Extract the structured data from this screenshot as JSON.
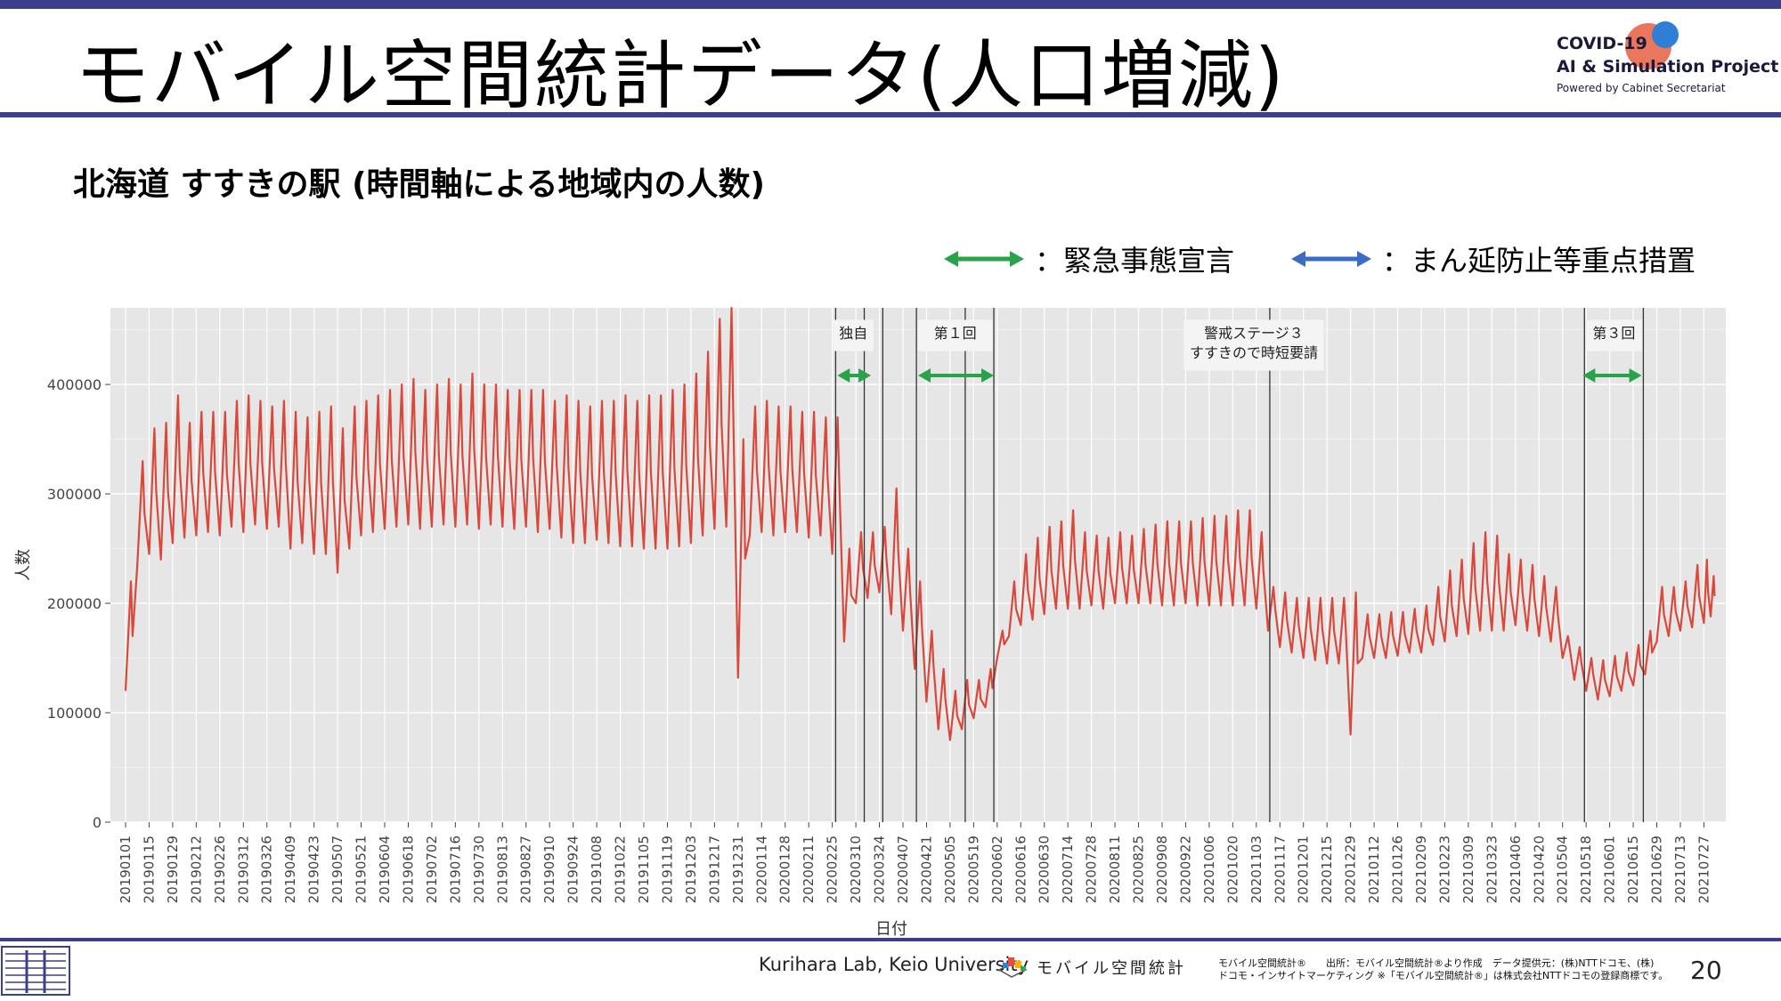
{
  "slide": {
    "title": "モバイル空間統計データ(人口増減)",
    "brand": {
      "line1": "COVID-19",
      "line2": "AI & Simulation Project",
      "line3": "Powered by Cabinet Secretariat"
    },
    "subtitle": "北海道 すすきの駅 (時間軸による地域内の人数)",
    "legend": [
      {
        "label": "：緊急事態宣言",
        "color": "#2aa24a"
      },
      {
        "label": "：まん延防止等重点措置",
        "color": "#3b6bc4"
      }
    ],
    "footer": {
      "lab": "Kurihara Lab, Keio University",
      "mobile_logo_text": "モバイル空間統計",
      "note_line1": "モバイル空間統計®　　出所：モバイル空間統計®より作成　データ提供元：(株)NTTドコモ、(株)",
      "note_line2": "ドコモ・インサイトマーケティング ※「モバイル空間統計®」は株式会社NTTドコモの登録商標です。",
      "page": "20"
    }
  },
  "chart_data": {
    "type": "line",
    "xlabel": "日付",
    "ylabel": "人数",
    "ylim": [
      0,
      470000
    ],
    "yticks": [
      0,
      100000,
      200000,
      300000,
      400000
    ],
    "ytick_labels": [
      "0",
      "100000",
      "200000",
      "300000",
      "400000"
    ],
    "xtick_labels": [
      "20190101",
      "20190115",
      "20190129",
      "20190212",
      "20190226",
      "20190312",
      "20190326",
      "20190409",
      "20190423",
      "20190507",
      "20190521",
      "20190604",
      "20190618",
      "20190702",
      "20190716",
      "20190730",
      "20190813",
      "20190827",
      "20190910",
      "20190924",
      "20191008",
      "20191022",
      "20191105",
      "20191119",
      "20191203",
      "20191217",
      "20191231",
      "20200114",
      "20200128",
      "20200211",
      "20200225",
      "20200310",
      "20200324",
      "20200407",
      "20200421",
      "20200505",
      "20200519",
      "20200602",
      "20200616",
      "20200630",
      "20200714",
      "20200728",
      "20200811",
      "20200825",
      "20200908",
      "20200922",
      "20201006",
      "20201020",
      "20201103",
      "20201117",
      "20201201",
      "20201215",
      "20201229",
      "20210112",
      "20210126",
      "20210209",
      "20210223",
      "20210309",
      "20210323",
      "20210406",
      "20210420",
      "20210504",
      "20210518",
      "20210601",
      "20210615",
      "20210629",
      "20210713",
      "20210727"
    ],
    "series_color": "#d9483b",
    "series": [
      {
        "x": [
          "20190101",
          "20190108",
          "20190115",
          "20190122",
          "20190129",
          "20190205",
          "20190212",
          "20190219",
          "20190226",
          "20190305",
          "20190312",
          "20190319",
          "20190326",
          "20190402",
          "20190409",
          "20190416",
          "20190423",
          "20190430",
          "20190507",
          "20190514",
          "20190521",
          "20190528",
          "20190604",
          "20190611",
          "20190618",
          "20190625",
          "20190702",
          "20190709",
          "20190716",
          "20190723",
          "20190730",
          "20190806",
          "20190813",
          "20190820",
          "20190827",
          "20190903",
          "20190910",
          "20190917",
          "20190924",
          "20191001",
          "20191008",
          "20191015",
          "20191022",
          "20191029",
          "20191105",
          "20191112",
          "20191119",
          "20191126",
          "20191203",
          "20191210",
          "20191217",
          "20191224",
          "20191231",
          "20200107",
          "20200114",
          "20200121",
          "20200128",
          "20200204",
          "20200211",
          "20200218",
          "20200225",
          "20200303",
          "20200310",
          "20200317",
          "20200324",
          "20200331",
          "20200407",
          "20200414",
          "20200421",
          "20200428",
          "20200505",
          "20200512",
          "20200519",
          "20200526",
          "20200602",
          "20200609",
          "20200616",
          "20200623",
          "20200630",
          "20200707",
          "20200714",
          "20200721",
          "20200728",
          "20200804",
          "20200811",
          "20200818",
          "20200825",
          "20200901",
          "20200908",
          "20200915",
          "20200922",
          "20200929",
          "20201006",
          "20201013",
          "20201020",
          "20201027",
          "20201103",
          "20201110",
          "20201117",
          "20201124",
          "20201201",
          "20201208",
          "20201215",
          "20201222",
          "20201229",
          "20210105",
          "20210112",
          "20210119",
          "20210126",
          "20210202",
          "20210209",
          "20210216",
          "20210223",
          "20210302",
          "20210309",
          "20210316",
          "20210323",
          "20210330",
          "20210406",
          "20210413",
          "20210420",
          "20210427",
          "20210504",
          "20210511",
          "20210518",
          "20210525",
          "20210601",
          "20210608",
          "20210615",
          "20210622",
          "20210629",
          "20210706",
          "20210713",
          "20210720",
          "20210727",
          "20210731"
        ],
        "low": [
          120000,
          235000,
          245000,
          240000,
          255000,
          260000,
          262000,
          265000,
          262000,
          270000,
          265000,
          272000,
          268000,
          270000,
          250000,
          255000,
          245000,
          245000,
          228000,
          250000,
          262000,
          265000,
          268000,
          270000,
          272000,
          268000,
          270000,
          272000,
          270000,
          272000,
          268000,
          272000,
          270000,
          268000,
          270000,
          265000,
          268000,
          260000,
          255000,
          255000,
          258000,
          255000,
          252000,
          252000,
          250000,
          250000,
          250000,
          252000,
          255000,
          262000,
          268000,
          270000,
          132000,
          262000,
          265000,
          262000,
          265000,
          265000,
          260000,
          262000,
          245000,
          165000,
          200000,
          205000,
          210000,
          190000,
          175000,
          140000,
          110000,
          85000,
          75000,
          85000,
          95000,
          105000,
          150000,
          170000,
          180000,
          185000,
          190000,
          195000,
          195000,
          195000,
          198000,
          195000,
          200000,
          200000,
          200000,
          200000,
          198000,
          198000,
          200000,
          198000,
          198000,
          198000,
          198000,
          198000,
          195000,
          175000,
          160000,
          155000,
          150000,
          148000,
          145000,
          145000,
          80000,
          150000,
          150000,
          150000,
          152000,
          155000,
          155000,
          162000,
          165000,
          170000,
          172000,
          175000,
          175000,
          175000,
          180000,
          175000,
          170000,
          165000,
          150000,
          130000,
          120000,
          112000,
          115000,
          120000,
          125000,
          135000,
          165000,
          170000,
          175000,
          178000,
          182000,
          188000
        ],
        "high": [
          220000,
          330000,
          360000,
          365000,
          390000,
          365000,
          375000,
          375000,
          375000,
          385000,
          390000,
          385000,
          380000,
          385000,
          375000,
          370000,
          375000,
          380000,
          360000,
          380000,
          385000,
          390000,
          395000,
          400000,
          405000,
          395000,
          400000,
          405000,
          400000,
          410000,
          400000,
          400000,
          395000,
          395000,
          395000,
          395000,
          385000,
          390000,
          385000,
          380000,
          385000,
          385000,
          390000,
          385000,
          390000,
          390000,
          395000,
          400000,
          410000,
          430000,
          460000,
          470000,
          350000,
          380000,
          385000,
          380000,
          380000,
          375000,
          375000,
          370000,
          370000,
          250000,
          265000,
          265000,
          270000,
          305000,
          250000,
          220000,
          175000,
          140000,
          120000,
          130000,
          130000,
          140000,
          175000,
          220000,
          245000,
          260000,
          270000,
          275000,
          285000,
          265000,
          262000,
          260000,
          265000,
          262000,
          268000,
          272000,
          275000,
          275000,
          275000,
          278000,
          280000,
          280000,
          285000,
          285000,
          265000,
          215000,
          210000,
          205000,
          205000,
          205000,
          205000,
          205000,
          210000,
          190000,
          190000,
          192000,
          192000,
          195000,
          198000,
          215000,
          230000,
          240000,
          255000,
          265000,
          262000,
          245000,
          240000,
          235000,
          225000,
          215000,
          170000,
          160000,
          150000,
          148000,
          152000,
          155000,
          162000,
          175000,
          215000,
          215000,
          220000,
          235000,
          240000,
          225000
        ]
      }
    ],
    "vlines": [
      "20200227",
      "20200315",
      "20200326",
      "20200415",
      "20200514",
      "20200531",
      "20201111",
      "20210517",
      "20210621"
    ],
    "annotations": [
      {
        "text": "独自",
        "start": "20200228",
        "end": "20200318"
      },
      {
        "text": "第１回",
        "start": "20200416",
        "end": "20200530"
      },
      {
        "text": "警戒ステージ３\nすすきので時短要請",
        "start": "20201024",
        "end": "20201110"
      },
      {
        "text": "第３回",
        "start": "20210518",
        "end": "20210620"
      }
    ],
    "emergency_periods": [
      [
        "20200228",
        "20200319"
      ],
      [
        "20200416",
        "20200531"
      ],
      [
        "20210516",
        "20210620"
      ]
    ]
  }
}
